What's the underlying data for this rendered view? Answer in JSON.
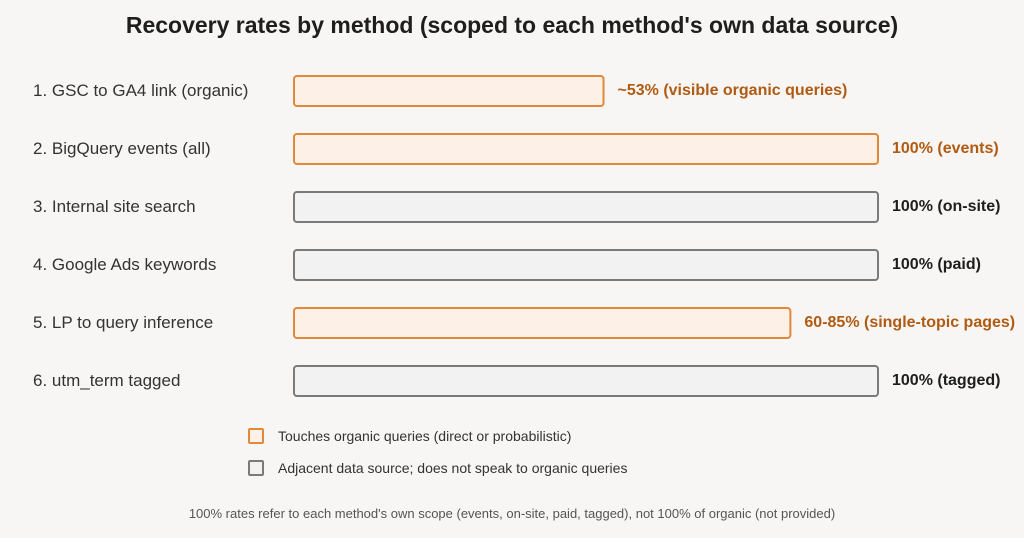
{
  "chart_data": {
    "type": "bar",
    "orientation": "horizontal",
    "title": "Recovery rates by method (scoped to each method's own data source)",
    "categories": [
      "1. GSC to GA4 link (organic)",
      "2. BigQuery events (all)",
      "3. Internal site search",
      "4. Google Ads keywords",
      "5. LP to query inference",
      "6. utm_term tagged"
    ],
    "values": [
      53,
      100,
      100,
      100,
      85,
      100
    ],
    "value_labels": [
      "~53% (visible organic queries)",
      "100% (events)",
      "100% (on-site)",
      "100% (paid)",
      "60-85% (single-topic pages)",
      "100% (tagged)"
    ],
    "groups": [
      "organic",
      "organic",
      "adjacent",
      "adjacent",
      "organic",
      "adjacent"
    ],
    "xlim": [
      0,
      100
    ],
    "grid": false,
    "legend": [
      {
        "key": "organic",
        "label": "Touches organic queries (direct or probabilistic)"
      },
      {
        "key": "adjacent",
        "label": "Adjacent data source; does not speak to organic queries"
      }
    ],
    "legend_placement": "bottom-center",
    "footnote": "100% rates refer to each method's own scope (events, on-site, paid, tagged), not 100% of organic (not provided)"
  },
  "colors": {
    "organic_stroke": "#e0893a",
    "organic_fill": "#fdf0e6",
    "organic_text": "#b05a12",
    "adjacent_stroke": "#7a7a7a",
    "adjacent_fill": "#f2f2f2",
    "adjacent_text": "#1e1e1e"
  }
}
